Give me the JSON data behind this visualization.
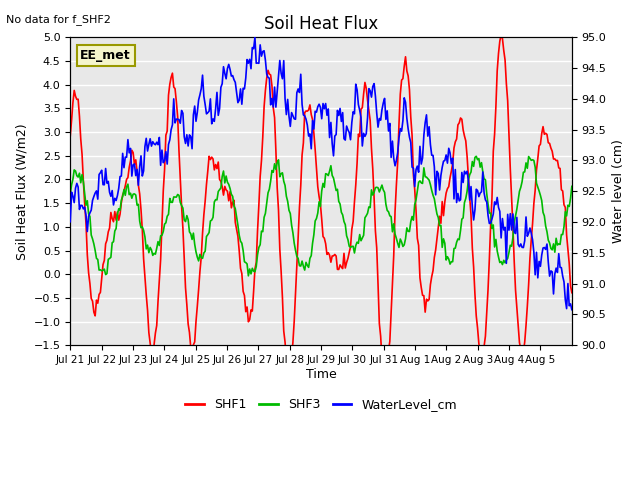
{
  "title": "Soil Heat Flux",
  "top_left_text": "No data for f_SHF2",
  "annotation_box": "EE_met",
  "xlabel": "Time",
  "ylabel_left": "Soil Heat Flux (W/m2)",
  "ylabel_right": "Water level (cm)",
  "ylim_left": [
    -1.5,
    5.0
  ],
  "ylim_right": [
    90.0,
    95.0
  ],
  "x_tick_labels": [
    "Jul 21",
    "Jul 22",
    "Jul 23",
    "Jul 24",
    "Jul 25",
    "Jul 26",
    "Jul 27",
    "Jul 28",
    "Jul 29",
    "Jul 30",
    "Jul 31",
    "Aug 1",
    "Aug 2",
    "Aug 3",
    "Aug 4",
    "Aug 5"
  ],
  "colors": {
    "SHF1": "#ff0000",
    "SHF3": "#00bb00",
    "WaterLevel": "#0000ff",
    "plot_bg": "#e8e8e8"
  },
  "legend": [
    {
      "label": "SHF1",
      "color": "#ff0000"
    },
    {
      "label": "SHF3",
      "color": "#00bb00"
    },
    {
      "label": "WaterLevel_cm",
      "color": "#0000ff"
    }
  ]
}
